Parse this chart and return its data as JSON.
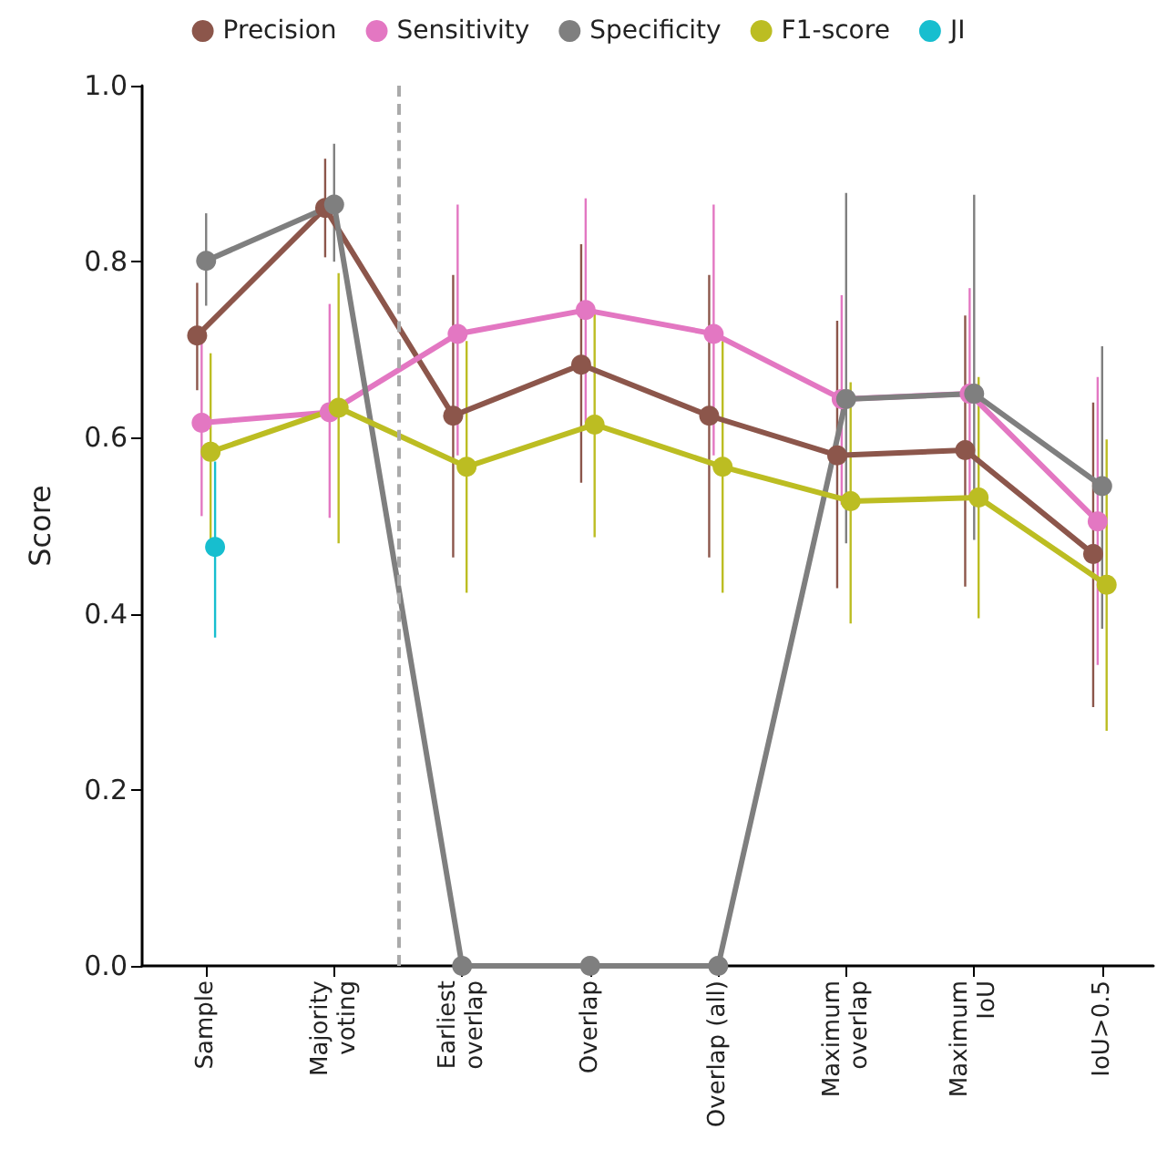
{
  "chart_data": {
    "type": "line",
    "categories": [
      "Sample",
      "Majority\nvoting",
      "Earliest\noverlap",
      "Overlap",
      "Overlap (all)",
      "Maximum\noverlap",
      "Maximum\nIoU",
      "IoU>0.5"
    ],
    "ylabel": "Score",
    "ylim": [
      0,
      1
    ],
    "yticks": [
      {
        "value": 0,
        "label": "0.0"
      },
      {
        "value": 0.2,
        "label": "0.2"
      },
      {
        "value": 0.4,
        "label": "0.4"
      },
      {
        "value": 0.6,
        "label": "0.6"
      },
      {
        "value": 0.8,
        "label": "0.8"
      },
      {
        "value": 1,
        "label": "1.0"
      }
    ],
    "series": [
      {
        "name": "Precision",
        "color": "#8c564b",
        "values": [
          0.716,
          0.861,
          0.625,
          0.683,
          0.625,
          0.58,
          0.586,
          0.468
        ],
        "errors": [
          [
            0.654,
            0.776
          ],
          [
            0.805,
            0.917
          ],
          [
            0.464,
            0.785
          ],
          [
            0.549,
            0.82
          ],
          [
            0.464,
            0.785
          ],
          [
            0.429,
            0.733
          ],
          [
            0.431,
            0.739
          ],
          [
            0.294,
            0.64
          ]
        ]
      },
      {
        "name": "Sensitivity",
        "color": "#e377c2",
        "values": [
          0.617,
          0.629,
          0.718,
          0.745,
          0.718,
          0.644,
          0.65,
          0.505
        ],
        "errors": [
          [
            0.511,
            0.72
          ],
          [
            0.509,
            0.752
          ],
          [
            0.58,
            0.865
          ],
          [
            0.617,
            0.872
          ],
          [
            0.58,
            0.865
          ],
          [
            0.524,
            0.762
          ],
          [
            0.534,
            0.77
          ],
          [
            0.342,
            0.669
          ]
        ]
      },
      {
        "name": "Specificity",
        "color": "#7f7f7f",
        "values": [
          0.801,
          0.865,
          0,
          0,
          0,
          0.644,
          0.65,
          0.545
        ],
        "errors": [
          [
            0.75,
            0.855
          ],
          [
            0.8,
            0.934
          ],
          null,
          null,
          null,
          [
            0.48,
            0.878
          ],
          [
            0.484,
            0.876
          ],
          [
            0.383,
            0.704
          ]
        ]
      },
      {
        "name": "F1-score",
        "color": "#bcbd22",
        "values": [
          0.584,
          0.634,
          0.567,
          0.615,
          0.567,
          0.528,
          0.532,
          0.433
        ],
        "errors": [
          [
            0.482,
            0.696
          ],
          [
            0.48,
            0.787
          ],
          [
            0.424,
            0.71
          ],
          [
            0.487,
            0.741
          ],
          [
            0.424,
            0.71
          ],
          [
            0.389,
            0.663
          ],
          [
            0.395,
            0.669
          ],
          [
            0.267,
            0.598
          ]
        ]
      },
      {
        "name": "JI",
        "color": "#17becf",
        "values": [
          0.476,
          null,
          null,
          null,
          null,
          null,
          null,
          null
        ],
        "errors": [
          [
            0.373,
            0.573
          ],
          null,
          null,
          null,
          null,
          null,
          null,
          null
        ]
      }
    ],
    "legend": "top",
    "marker": "circle",
    "line_style": "solid",
    "grid": false
  }
}
